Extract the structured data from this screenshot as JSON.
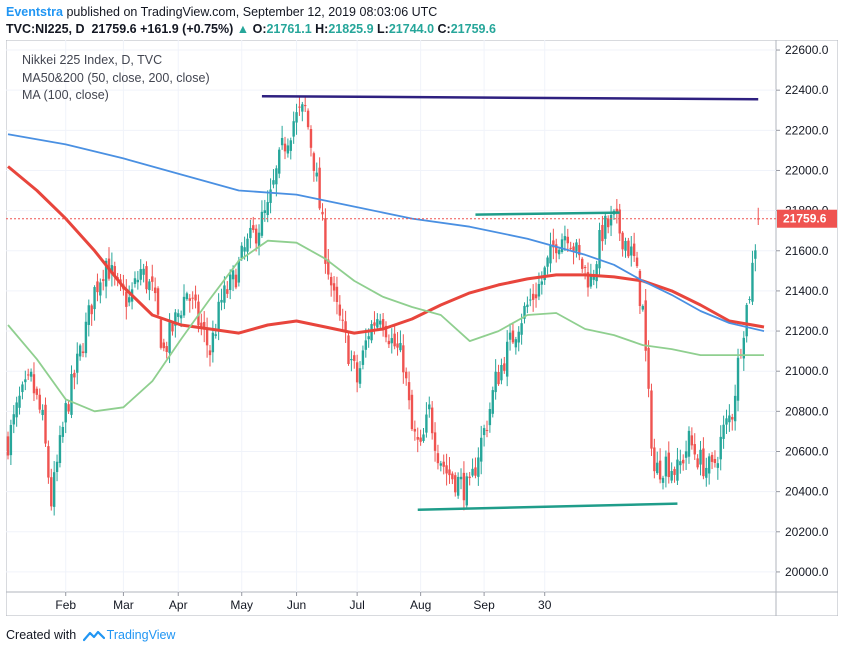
{
  "header": {
    "author": "Eventstra",
    "published_text": "published on TradingView.com, September 12, 2019 08:03:06 UTC",
    "symbol": "TVC:NI225, D",
    "last": "21759.6",
    "change": "+161.9 (+0.75%)",
    "up_arrow": "▲",
    "o_label": "O:",
    "o_value": "21761.1",
    "h_label": "H:",
    "h_value": "21825.9",
    "l_label": "L:",
    "l_value": "21744.0",
    "c_label": "C:",
    "c_value": "21759.6"
  },
  "legend": {
    "line1": "Nikkei 225 Index, D, TVC",
    "line2": "MA50&200 (50, close, 200, close)",
    "line3": "MA (100, close)"
  },
  "footer": {
    "created_with": "Created with",
    "brand": "TradingView"
  },
  "colors": {
    "up": "#26a69a",
    "down": "#ef5350",
    "ma50": "#e8453c",
    "ma200": "#4a90e2",
    "ma100": "#8fcf8f",
    "top_trendline": "#2e2080",
    "support_lines": "#1f9d8a",
    "price_line": "#ef5350"
  },
  "chart_data": {
    "type": "candlestick",
    "title": "Nikkei 225 Index, D, TVC",
    "ylim": [
      19900,
      22650
    ],
    "y_ticks": [
      20000,
      20200,
      20400,
      20600,
      20800,
      21000,
      21200,
      21400,
      21600,
      21800,
      22000,
      22200,
      22400,
      22600
    ],
    "y_tick_labels": [
      "20000.0",
      "20200.0",
      "20400.0",
      "20600.0",
      "20800.0",
      "21000.0",
      "21200.0",
      "21400.0",
      "21600.0",
      "21800.0",
      "22000.0",
      "22200.0",
      "22400.0",
      "22600.0"
    ],
    "x_tick_labels": [
      "Feb",
      "Mar",
      "Apr",
      "May",
      "Jun",
      "Jul",
      "Aug",
      "Sep",
      "30"
    ],
    "current_price": 21759.6,
    "current_price_label": "21759.6",
    "close_path": [
      [
        0,
        20650
      ],
      [
        4,
        20850
      ],
      [
        8,
        20950
      ],
      [
        12,
        20750
      ],
      [
        15,
        20350
      ],
      [
        20,
        20800
      ],
      [
        26,
        21150
      ],
      [
        30,
        21400
      ],
      [
        34,
        21550
      ],
      [
        38,
        21400
      ],
      [
        42,
        21350
      ],
      [
        46,
        21500
      ],
      [
        50,
        21400
      ],
      [
        54,
        21100
      ],
      [
        58,
        21250
      ],
      [
        62,
        21400
      ],
      [
        66,
        21250
      ],
      [
        70,
        21100
      ],
      [
        74,
        21350
      ],
      [
        78,
        21450
      ],
      [
        82,
        21600
      ],
      [
        86,
        21700
      ],
      [
        90,
        21800
      ],
      [
        95,
        22100
      ],
      [
        99,
        22250
      ],
      [
        103,
        22300
      ],
      [
        106,
        22050
      ],
      [
        110,
        21600
      ],
      [
        113,
        21350
      ],
      [
        117,
        21150
      ],
      [
        121,
        20950
      ],
      [
        125,
        21200
      ],
      [
        129,
        21300
      ],
      [
        133,
        21150
      ],
      [
        137,
        21050
      ],
      [
        140,
        20700
      ],
      [
        143,
        20600
      ],
      [
        146,
        20800
      ],
      [
        149,
        20600
      ],
      [
        152,
        20500
      ],
      [
        156,
        20450
      ],
      [
        160,
        20400
      ],
      [
        163,
        20600
      ],
      [
        166,
        20750
      ],
      [
        169,
        20950
      ],
      [
        173,
        21100
      ],
      [
        177,
        21250
      ],
      [
        181,
        21350
      ],
      [
        185,
        21450
      ],
      [
        190,
        21650
      ],
      [
        194,
        21700
      ],
      [
        198,
        21550
      ],
      [
        202,
        21450
      ],
      [
        206,
        21700
      ],
      [
        210,
        21750
      ],
      [
        214,
        21650
      ],
      [
        217,
        21550
      ],
      [
        220,
        21300
      ],
      [
        222,
        20850
      ],
      [
        224,
        20500
      ],
      [
        228,
        20550
      ],
      [
        232,
        20500
      ],
      [
        236,
        20650
      ],
      [
        240,
        20550
      ],
      [
        244,
        20500
      ],
      [
        248,
        20700
      ],
      [
        251,
        20800
      ],
      [
        254,
        21150
      ],
      [
        257,
        21400
      ],
      [
        260,
        21759.6
      ]
    ],
    "series": [
      {
        "name": "MA 50",
        "points": [
          [
            0,
            22020
          ],
          [
            10,
            21900
          ],
          [
            20,
            21760
          ],
          [
            30,
            21600
          ],
          [
            40,
            21420
          ],
          [
            50,
            21280
          ],
          [
            60,
            21230
          ],
          [
            70,
            21210
          ],
          [
            80,
            21190
          ],
          [
            90,
            21230
          ],
          [
            100,
            21250
          ],
          [
            110,
            21220
          ],
          [
            120,
            21190
          ],
          [
            130,
            21210
          ],
          [
            140,
            21260
          ],
          [
            150,
            21330
          ],
          [
            160,
            21390
          ],
          [
            170,
            21430
          ],
          [
            180,
            21460
          ],
          [
            190,
            21480
          ],
          [
            200,
            21480
          ],
          [
            210,
            21470
          ],
          [
            220,
            21450
          ],
          [
            230,
            21400
          ],
          [
            240,
            21330
          ],
          [
            250,
            21250
          ],
          [
            262,
            21220
          ]
        ]
      },
      {
        "name": "MA 200",
        "points": [
          [
            0,
            22180
          ],
          [
            20,
            22130
          ],
          [
            40,
            22060
          ],
          [
            60,
            21980
          ],
          [
            80,
            21900
          ],
          [
            100,
            21880
          ],
          [
            120,
            21820
          ],
          [
            140,
            21760
          ],
          [
            160,
            21720
          ],
          [
            180,
            21660
          ],
          [
            200,
            21580
          ],
          [
            210,
            21530
          ],
          [
            220,
            21450
          ],
          [
            230,
            21380
          ],
          [
            240,
            21300
          ],
          [
            250,
            21240
          ],
          [
            262,
            21200
          ]
        ]
      },
      {
        "name": "MA 100",
        "points": [
          [
            0,
            21230
          ],
          [
            10,
            21060
          ],
          [
            20,
            20860
          ],
          [
            30,
            20800
          ],
          [
            40,
            20820
          ],
          [
            50,
            20950
          ],
          [
            60,
            21160
          ],
          [
            70,
            21360
          ],
          [
            80,
            21550
          ],
          [
            90,
            21650
          ],
          [
            100,
            21640
          ],
          [
            110,
            21560
          ],
          [
            120,
            21450
          ],
          [
            130,
            21370
          ],
          [
            140,
            21320
          ],
          [
            150,
            21280
          ],
          [
            160,
            21150
          ],
          [
            170,
            21200
          ],
          [
            180,
            21280
          ],
          [
            190,
            21290
          ],
          [
            200,
            21210
          ],
          [
            210,
            21180
          ],
          [
            220,
            21130
          ],
          [
            230,
            21110
          ],
          [
            240,
            21080
          ],
          [
            262,
            21080
          ]
        ]
      }
    ],
    "annotations": [
      {
        "name": "resistance-trendline",
        "points": [
          [
            88,
            22370
          ],
          [
            260,
            22355
          ]
        ]
      },
      {
        "name": "july-range-line",
        "points": [
          [
            162,
            21780
          ],
          [
            212,
            21790
          ]
        ]
      },
      {
        "name": "support-trendline",
        "points": [
          [
            142,
            20310
          ],
          [
            232,
            20340
          ]
        ]
      }
    ]
  }
}
